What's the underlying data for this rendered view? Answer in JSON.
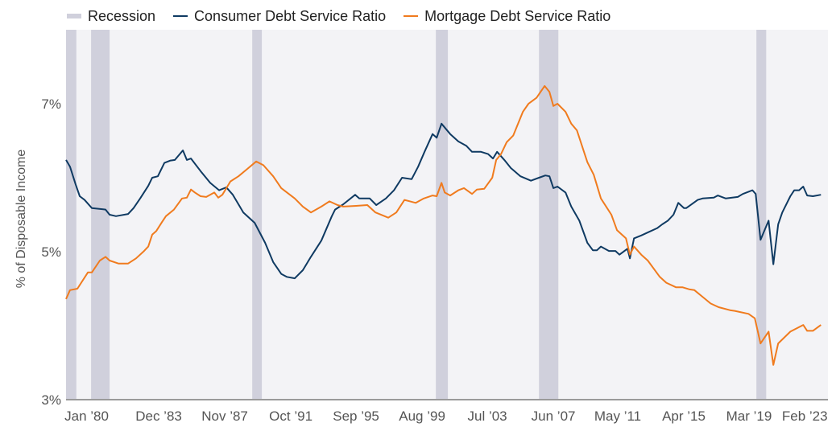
{
  "chart_data": {
    "type": "line",
    "title": "",
    "xlabel": "",
    "ylabel": "% of Disposable Income",
    "xlim": [
      1980,
      2024.4
    ],
    "ylim": [
      3,
      8
    ],
    "grid": false,
    "legend_position": "top-left",
    "legend": [
      "Recession",
      "Consumer Debt Service Ratio",
      "Mortgage Debt Service Ratio"
    ],
    "colors": {
      "consumer": "#0f3a62",
      "mortgage": "#f07b1e",
      "recession": "#d0d0dc",
      "plot_bg": "#f3f3f6",
      "axis": "#9a9a9a"
    },
    "y_ticks": [
      {
        "value": 3,
        "label": "3%"
      },
      {
        "value": 5,
        "label": "5%"
      },
      {
        "value": 7,
        "label": "7%"
      }
    ],
    "x_ticks": [
      {
        "value": 1981.2,
        "label": "Jan ’80"
      },
      {
        "value": 1985.4,
        "label": "Dec ’83"
      },
      {
        "value": 1989.25,
        "label": "Nov ’87"
      },
      {
        "value": 1993.1,
        "label": "Oct ’91"
      },
      {
        "value": 1996.9,
        "label": "Sep ’95"
      },
      {
        "value": 2000.75,
        "label": "Aug ’99"
      },
      {
        "value": 2004.55,
        "label": "Jul ’03"
      },
      {
        "value": 2008.4,
        "label": "Jun ’07"
      },
      {
        "value": 2012.15,
        "label": "May ’11"
      },
      {
        "value": 2016.0,
        "label": "Apr ’15"
      },
      {
        "value": 2019.8,
        "label": "Mar ’19"
      },
      {
        "value": 2023.05,
        "label": "Feb ’23"
      }
    ],
    "recessions": [
      [
        1980.0,
        1980.6
      ],
      [
        1981.46,
        1982.54
      ],
      [
        1990.85,
        1991.41
      ],
      [
        2001.55,
        2002.25
      ],
      [
        2007.56,
        2008.69
      ],
      [
        2020.23,
        2020.8
      ]
    ],
    "series": [
      {
        "name": "Consumer Debt Service Ratio",
        "key": "consumer",
        "x": [
          1980.0,
          1980.23,
          1980.56,
          1980.8,
          1981.08,
          1981.5,
          1982.3,
          1982.54,
          1982.91,
          1983.62,
          1983.94,
          1984.32,
          1984.79,
          1985.02,
          1985.35,
          1985.73,
          1986.06,
          1986.34,
          1986.81,
          1987.04,
          1987.28,
          1987.84,
          1988.4,
          1988.92,
          1989.34,
          1989.72,
          1990.33,
          1990.99,
          1991.6,
          1992.07,
          1992.54,
          1992.86,
          1993.33,
          1993.8,
          1994.27,
          1994.88,
          1995.49,
          1995.68,
          1996.15,
          1996.85,
          1997.09,
          1997.7,
          1998.08,
          1998.64,
          1999.11,
          1999.58,
          2000.14,
          2000.52,
          2000.89,
          2001.36,
          2001.6,
          2001.88,
          2002.39,
          2002.86,
          2003.33,
          2003.66,
          2004.18,
          2004.6,
          2004.88,
          2005.12,
          2005.54,
          2005.92,
          2006.48,
          2007.09,
          2007.56,
          2007.93,
          2008.17,
          2008.4,
          2008.64,
          2009.11,
          2009.44,
          2009.91,
          2010.38,
          2010.7,
          2010.94,
          2011.17,
          2011.64,
          2012.02,
          2012.25,
          2012.72,
          2012.86,
          2013.1,
          2013.52,
          2013.99,
          2014.46,
          2014.74,
          2015.07,
          2015.4,
          2015.68,
          2016.01,
          2016.15,
          2016.81,
          2017.09,
          2017.75,
          2017.98,
          2018.45,
          2019.15,
          2019.44,
          2020.0,
          2020.19,
          2020.47,
          2020.94,
          2021.22,
          2021.5,
          2021.74,
          2022.21,
          2022.44,
          2022.72,
          2022.96,
          2023.19,
          2023.52,
          2023.99
        ],
        "values": [
          6.24,
          6.15,
          5.91,
          5.75,
          5.7,
          5.59,
          5.57,
          5.5,
          5.48,
          5.51,
          5.59,
          5.72,
          5.89,
          6.0,
          6.02,
          6.2,
          6.23,
          6.24,
          6.37,
          6.24,
          6.26,
          6.09,
          5.93,
          5.83,
          5.87,
          5.77,
          5.53,
          5.39,
          5.12,
          4.86,
          4.7,
          4.66,
          4.64,
          4.75,
          4.93,
          5.15,
          5.48,
          5.57,
          5.64,
          5.77,
          5.72,
          5.72,
          5.63,
          5.72,
          5.83,
          6.0,
          5.98,
          6.15,
          6.35,
          6.59,
          6.54,
          6.73,
          6.59,
          6.49,
          6.43,
          6.35,
          6.35,
          6.32,
          6.26,
          6.35,
          6.24,
          6.13,
          6.02,
          5.96,
          6.0,
          6.03,
          6.02,
          5.86,
          5.88,
          5.8,
          5.61,
          5.42,
          5.12,
          5.02,
          5.02,
          5.07,
          5.01,
          5.01,
          4.96,
          5.04,
          4.91,
          5.18,
          5.22,
          5.27,
          5.32,
          5.37,
          5.42,
          5.5,
          5.66,
          5.59,
          5.59,
          5.7,
          5.72,
          5.73,
          5.76,
          5.72,
          5.74,
          5.78,
          5.83,
          5.78,
          5.16,
          5.42,
          4.83,
          5.37,
          5.53,
          5.75,
          5.83,
          5.83,
          5.88,
          5.76,
          5.75,
          5.77
        ]
      },
      {
        "name": "Mortgage Debt Service Ratio",
        "key": "mortgage",
        "x": [
          1980.0,
          1980.23,
          1980.66,
          1981.27,
          1981.5,
          1981.97,
          1982.3,
          1982.54,
          1983.05,
          1983.62,
          1984.08,
          1984.55,
          1984.79,
          1985.02,
          1985.26,
          1985.59,
          1985.82,
          1986.29,
          1986.76,
          1987.04,
          1987.28,
          1987.51,
          1987.84,
          1988.17,
          1988.64,
          1988.87,
          1989.11,
          1989.58,
          1990.05,
          1990.52,
          1991.08,
          1991.5,
          1992.07,
          1992.54,
          1993.33,
          1993.8,
          1994.27,
          1994.88,
          1995.35,
          1995.82,
          1996.15,
          1996.9,
          1997.56,
          1998.03,
          1998.78,
          1999.25,
          1999.72,
          2000.38,
          2000.85,
          2001.36,
          2001.6,
          2001.88,
          2002.07,
          2002.39,
          2002.86,
          2003.19,
          2003.66,
          2003.94,
          2004.37,
          2004.84,
          2005.07,
          2005.35,
          2005.68,
          2006.06,
          2006.62,
          2006.95,
          2007.42,
          2007.89,
          2008.17,
          2008.4,
          2008.64,
          2009.11,
          2009.44,
          2009.77,
          2010.38,
          2010.75,
          2011.17,
          2011.78,
          2012.11,
          2012.63,
          2012.86,
          2013.1,
          2013.52,
          2013.9,
          2014.6,
          2014.98,
          2015.54,
          2015.92,
          2016.34,
          2016.62,
          2017.09,
          2017.56,
          2018.03,
          2018.69,
          2018.97,
          2019.77,
          2020.14,
          2020.47,
          2020.94,
          2021.22,
          2021.5,
          2022.21,
          2022.96,
          2023.19,
          2023.52,
          2023.99
        ],
        "values": [
          4.36,
          4.48,
          4.5,
          4.72,
          4.72,
          4.88,
          4.93,
          4.88,
          4.84,
          4.84,
          4.91,
          5.01,
          5.07,
          5.23,
          5.28,
          5.4,
          5.48,
          5.57,
          5.72,
          5.73,
          5.84,
          5.8,
          5.75,
          5.74,
          5.8,
          5.73,
          5.77,
          5.95,
          6.02,
          6.11,
          6.22,
          6.17,
          6.02,
          5.86,
          5.72,
          5.61,
          5.53,
          5.61,
          5.68,
          5.63,
          5.61,
          5.62,
          5.63,
          5.53,
          5.46,
          5.53,
          5.7,
          5.66,
          5.72,
          5.76,
          5.75,
          5.93,
          5.8,
          5.76,
          5.83,
          5.86,
          5.78,
          5.84,
          5.85,
          6.0,
          6.24,
          6.32,
          6.48,
          6.57,
          6.89,
          7.0,
          7.08,
          7.24,
          7.16,
          6.97,
          7.0,
          6.89,
          6.73,
          6.64,
          6.21,
          6.04,
          5.72,
          5.5,
          5.29,
          5.18,
          4.96,
          5.07,
          4.96,
          4.88,
          4.66,
          4.58,
          4.52,
          4.52,
          4.49,
          4.48,
          4.39,
          4.3,
          4.25,
          4.21,
          4.2,
          4.16,
          4.1,
          3.76,
          3.92,
          3.47,
          3.76,
          3.92,
          4.01,
          3.93,
          3.93,
          4.01
        ]
      }
    ]
  }
}
